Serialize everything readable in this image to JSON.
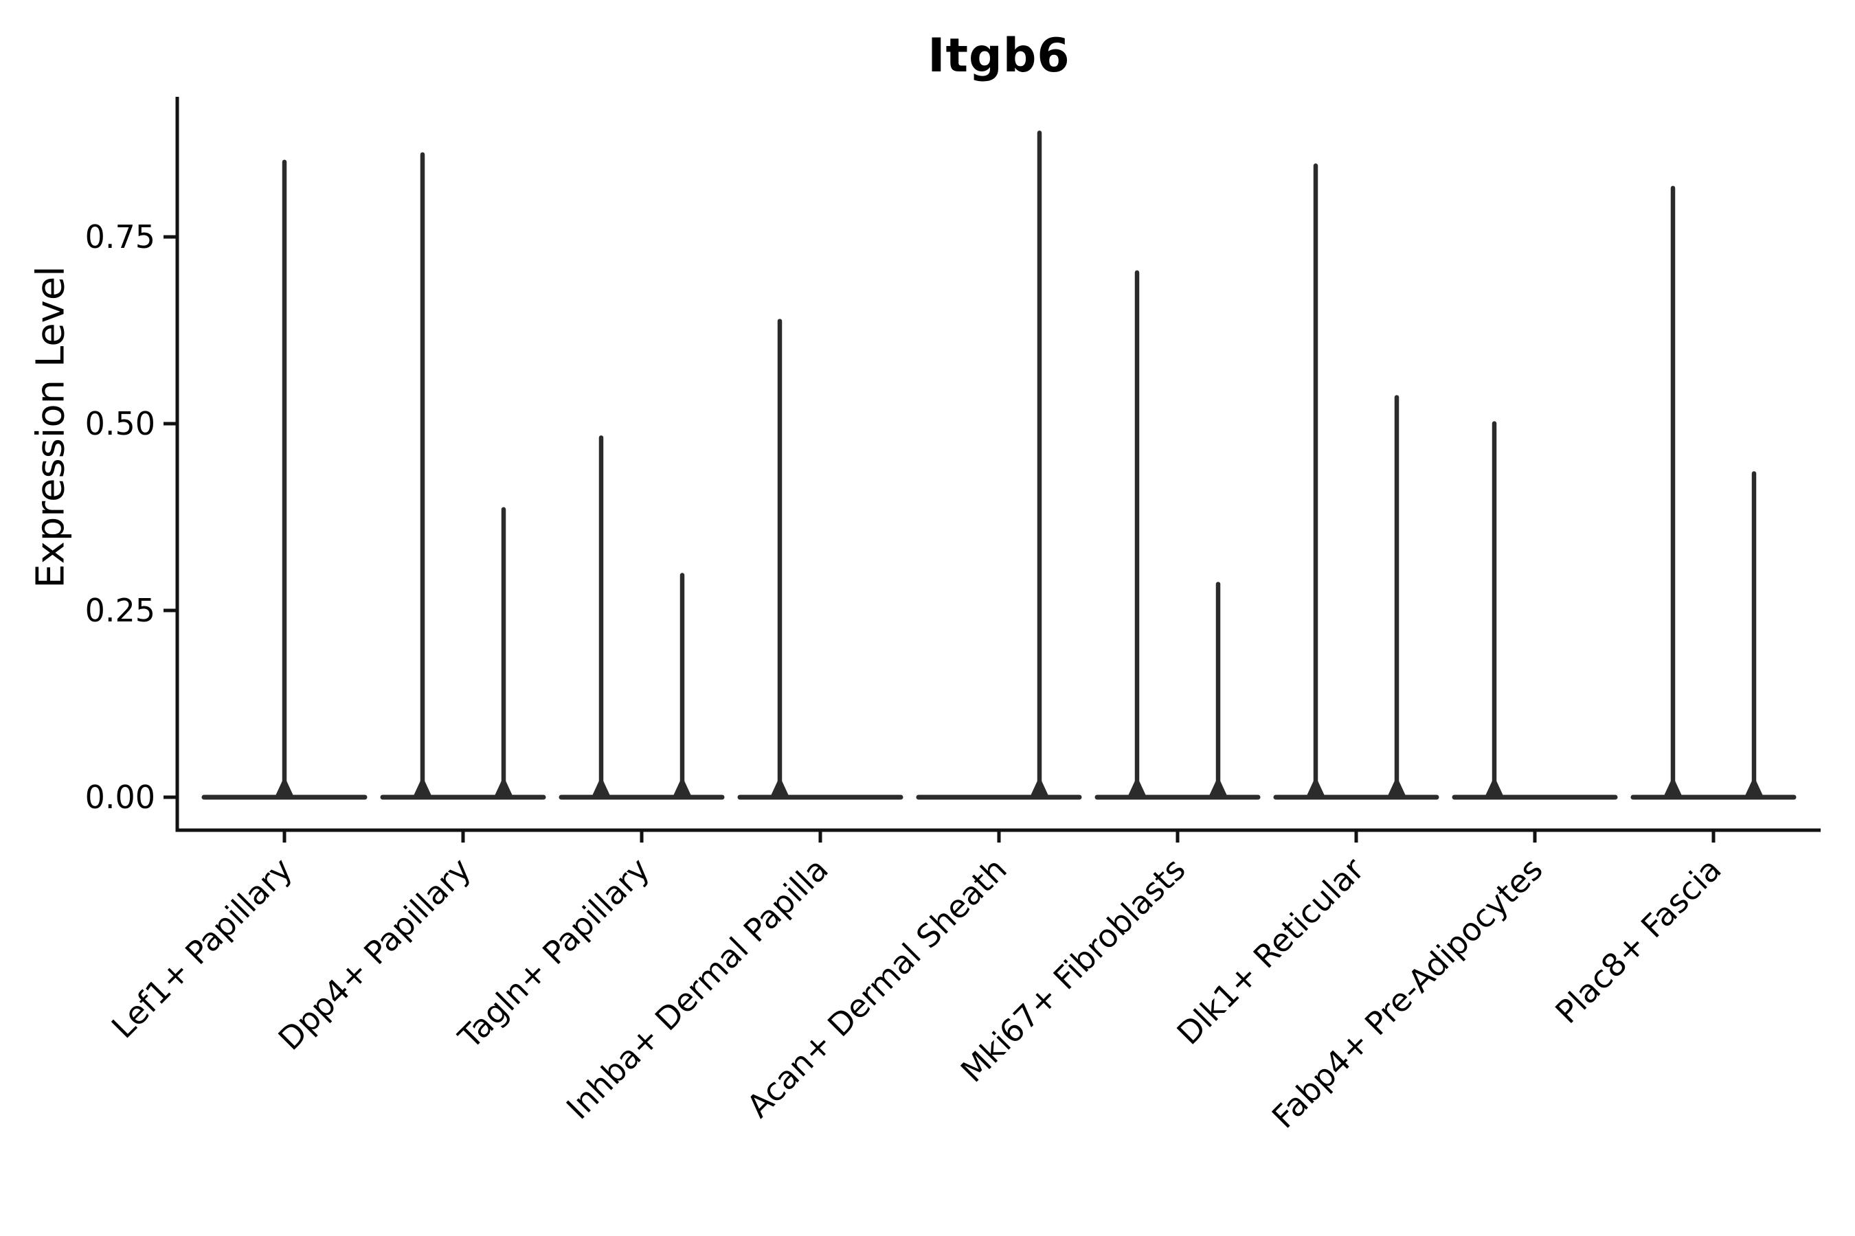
{
  "chart_data": {
    "type": "violin",
    "title": "Itgb6",
    "xlabel": "",
    "ylabel": "Expression Level",
    "ylim": [
      0,
      0.9375
    ],
    "grid": false,
    "legend": "none",
    "y_ticks": [
      {
        "value": 0.0,
        "label": "0.00"
      },
      {
        "value": 0.25,
        "label": "0.25"
      },
      {
        "value": 0.5,
        "label": "0.50"
      },
      {
        "value": 0.75,
        "label": "0.75"
      }
    ],
    "colors": {
      "violin": "#2b2b2b",
      "axis": "#111111",
      "text": "#000000",
      "background": "#ffffff"
    },
    "categories": [
      {
        "label": "Lef1+ Papillary",
        "violins": [
          {
            "position": "center",
            "max_expression": 0.854
          }
        ]
      },
      {
        "label": "Dpp4+ Papillary",
        "violins": [
          {
            "position": "left",
            "max_expression": 0.864
          },
          {
            "position": "right",
            "max_expression": 0.389
          }
        ]
      },
      {
        "label": "Tagln+ Papillary",
        "violins": [
          {
            "position": "left",
            "max_expression": 0.485
          },
          {
            "position": "right",
            "max_expression": 0.301
          }
        ]
      },
      {
        "label": "Inhba+ Dermal Papilla",
        "violins": [
          {
            "position": "left",
            "max_expression": 0.641
          }
        ]
      },
      {
        "label": "Acan+ Dermal Sheath",
        "violins": [
          {
            "position": "right",
            "max_expression": 0.893
          }
        ]
      },
      {
        "label": "Mki67+ Fibroblasts",
        "violins": [
          {
            "position": "left",
            "max_expression": 0.706
          },
          {
            "position": "right",
            "max_expression": 0.289
          }
        ]
      },
      {
        "label": "Dlk1+ Reticular",
        "violins": [
          {
            "position": "left",
            "max_expression": 0.849
          },
          {
            "position": "right",
            "max_expression": 0.539
          }
        ]
      },
      {
        "label": "Fabp4+ Pre-Adipocytes",
        "violins": [
          {
            "position": "left",
            "max_expression": 0.504
          }
        ]
      },
      {
        "label": "Plac8+ Fascia",
        "violins": [
          {
            "position": "left",
            "max_expression": 0.819
          },
          {
            "position": "right",
            "max_expression": 0.437
          }
        ]
      }
    ]
  }
}
